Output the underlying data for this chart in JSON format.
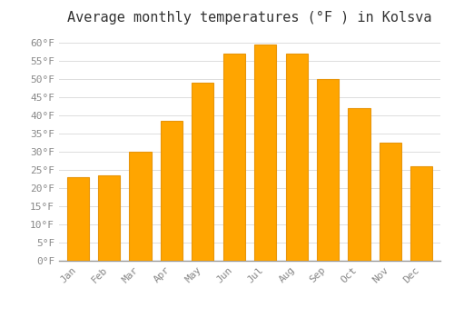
{
  "title": "Average monthly temperatures (°F ) in Kolsva",
  "months": [
    "Jan",
    "Feb",
    "Mar",
    "Apr",
    "May",
    "Jun",
    "Jul",
    "Aug",
    "Sep",
    "Oct",
    "Nov",
    "Dec"
  ],
  "values": [
    23,
    23.5,
    30,
    38.5,
    49,
    57,
    59.5,
    57,
    50,
    42,
    32.5,
    26
  ],
  "bar_color": "#FFA500",
  "bar_edge_color": "#E8950A",
  "background_color": "#FFFFFF",
  "grid_color": "#DDDDDD",
  "ylim": [
    0,
    63
  ],
  "ytick_step": 5,
  "title_fontsize": 11,
  "tick_fontsize": 8,
  "font_family": "monospace"
}
